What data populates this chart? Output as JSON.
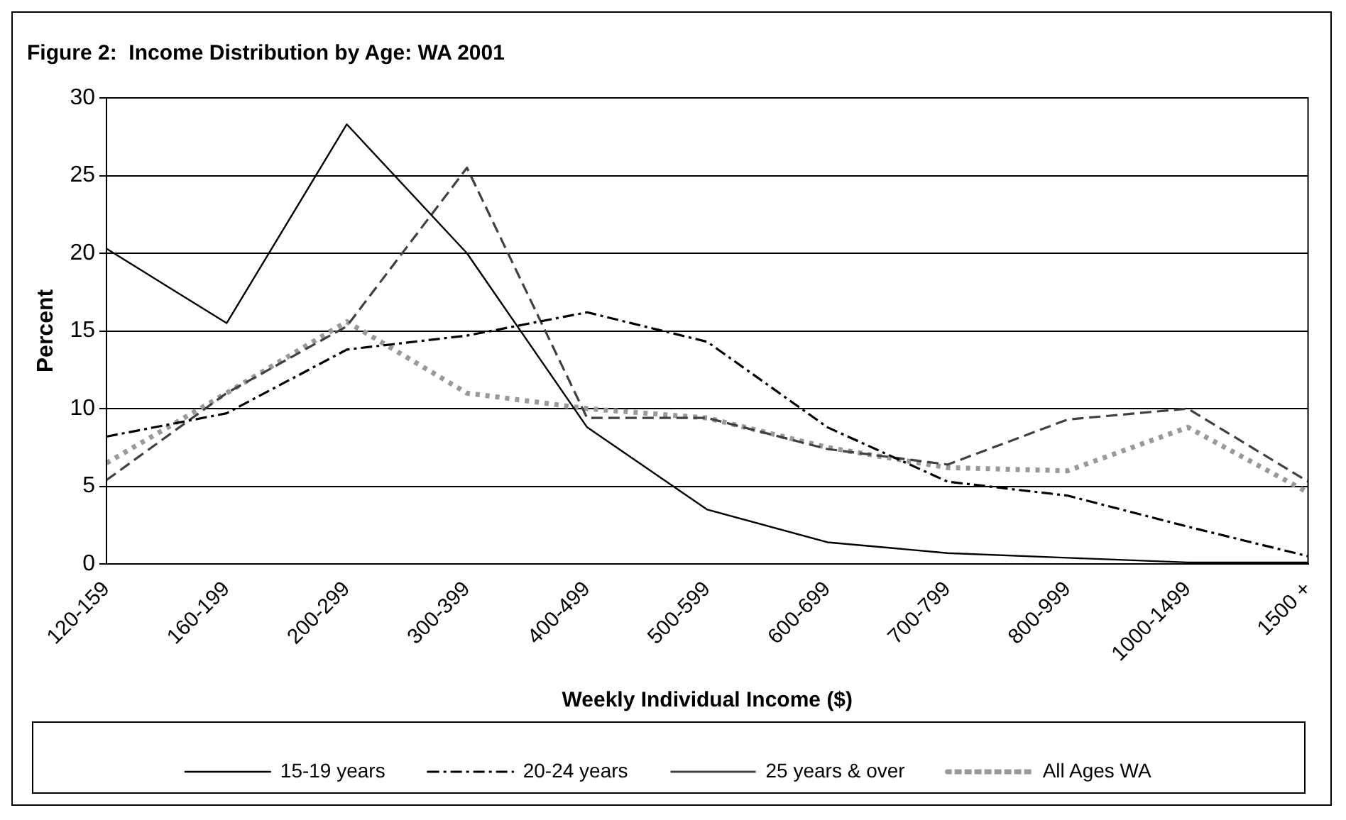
{
  "chart_data": {
    "type": "line",
    "title": "Figure 2:  Income Distribution by Age: WA 2001",
    "xlabel": "Weekly Individual Income ($)",
    "ylabel": "Percent",
    "categories": [
      "120-159",
      "160-199",
      "200-299",
      "300-399",
      "400-499",
      "500-599",
      "600-699",
      "700-799",
      "800-999",
      "1000-1499",
      "1500 +"
    ],
    "series": [
      {
        "name": "15-19 years",
        "color": "#000000",
        "line_style": "solid",
        "values": [
          20.3,
          15.5,
          28.3,
          20,
          8.8,
          3.5,
          1.4,
          0.7,
          0.4,
          0.1,
          0.1
        ]
      },
      {
        "name": "20-24 years",
        "color": "#000000",
        "line_style": "dashdot",
        "values": [
          8.2,
          9.7,
          13.8,
          14.7,
          16.2,
          14.3,
          8.8,
          5.3,
          4.4,
          2.4,
          0.5
        ]
      },
      {
        "name": "25 years & over",
        "color": "#404040",
        "line_style": "dashed",
        "values": [
          5.4,
          11,
          15.3,
          25.5,
          9.4,
          9.4,
          7.4,
          6.4,
          9.3,
          10,
          5.3
        ]
      },
      {
        "name": "All Ages WA",
        "color": "#999999",
        "line_style": "dotted",
        "values": [
          6.5,
          11,
          15.6,
          11,
          10,
          9.4,
          7.5,
          6.2,
          6,
          8.8,
          4.6
        ]
      }
    ],
    "ylim": [
      0,
      30
    ],
    "yticks": [
      0,
      5,
      10,
      15,
      20,
      25,
      30
    ],
    "grid": "y",
    "legend": "bottom",
    "marker": "none"
  }
}
